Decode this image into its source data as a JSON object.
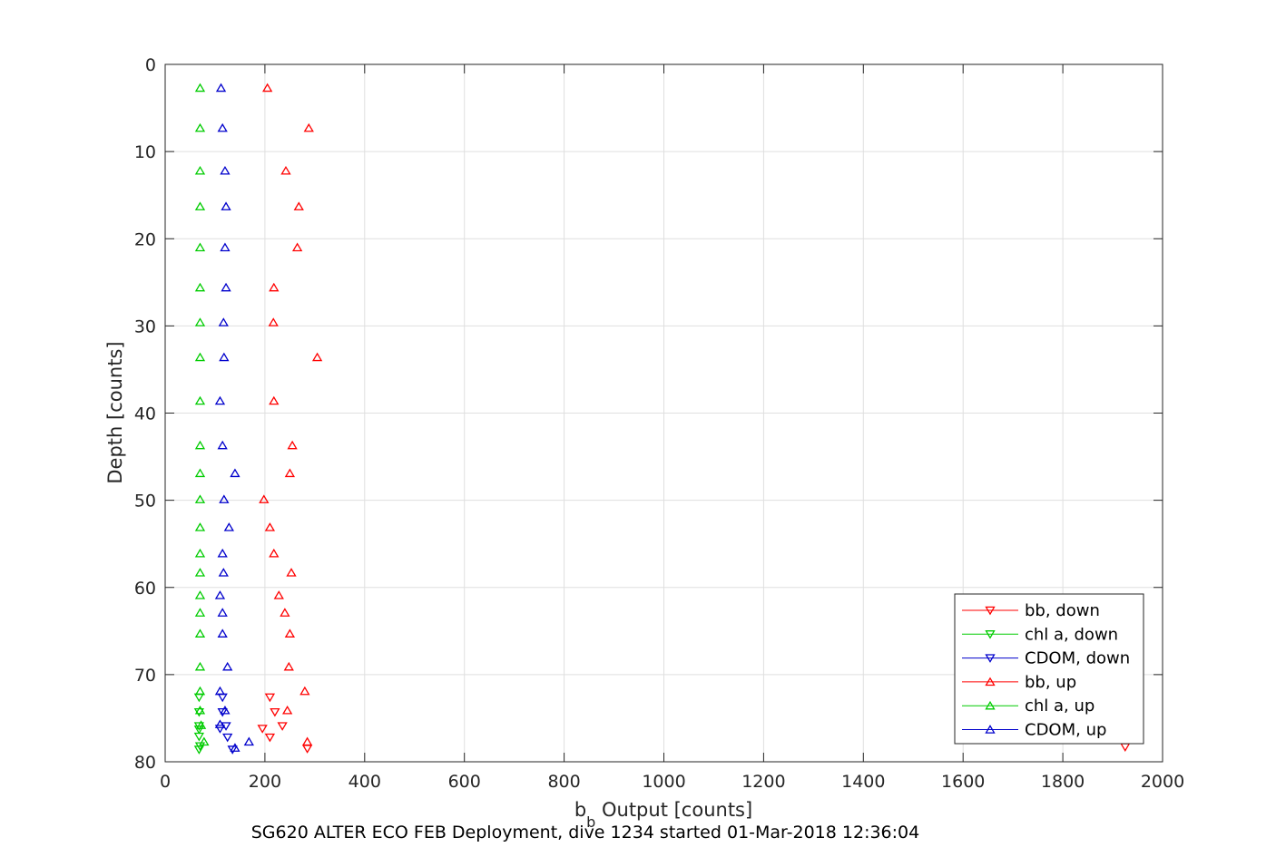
{
  "chart_data": {
    "type": "scatter",
    "xlabel_main": "b",
    "xlabel_sub": "b",
    "xlabel_rest": " Output [counts]",
    "ylabel": "Depth [counts]",
    "caption": "SG620 ALTER ECO FEB Deployment, dive 1234 started 01-Mar-2018 12:36:04",
    "xlim": [
      0,
      2000
    ],
    "ylim": [
      0,
      80
    ],
    "y_reversed": true,
    "grid": true,
    "legend_position": "bottom-right",
    "xticks": [
      0,
      200,
      400,
      600,
      800,
      1000,
      1200,
      1400,
      1600,
      1800,
      2000
    ],
    "yticks": [
      0,
      10,
      20,
      30,
      40,
      50,
      60,
      70,
      80
    ],
    "xtick_labels": [
      "0",
      "200",
      "400",
      "600",
      "800",
      "1000",
      "1200",
      "1400",
      "1600",
      "1800",
      "2000"
    ],
    "ytick_labels": [
      "0",
      "10",
      "20",
      "30",
      "40",
      "50",
      "60",
      "70",
      "80"
    ],
    "series": [
      {
        "name": "bb, down",
        "color": "#ff0000",
        "marker": "triangle-down",
        "points": [
          [
            210,
            72.6
          ],
          [
            220,
            74.3
          ],
          [
            235,
            75.9
          ],
          [
            195,
            76.2
          ],
          [
            210,
            77.2
          ],
          [
            285,
            78.5
          ],
          [
            1925,
            78.3
          ]
        ]
      },
      {
        "name": "chl a, down",
        "color": "#00cc00",
        "marker": "triangle-down",
        "points": [
          [
            68,
            72.6
          ],
          [
            68,
            74.3
          ],
          [
            68,
            75.9
          ],
          [
            68,
            76.3
          ],
          [
            68,
            77.1
          ],
          [
            70,
            78.2
          ],
          [
            68,
            78.6
          ]
        ]
      },
      {
        "name": "CDOM, down",
        "color": "#0000cc",
        "marker": "triangle-down",
        "points": [
          [
            115,
            72.6
          ],
          [
            115,
            74.3
          ],
          [
            122,
            75.9
          ],
          [
            110,
            76.2
          ],
          [
            125,
            77.2
          ],
          [
            135,
            78.6
          ]
        ]
      },
      {
        "name": "bb, up",
        "color": "#ff0000",
        "marker": "triangle-up",
        "points": [
          [
            205,
            2.7
          ],
          [
            288,
            7.3
          ],
          [
            242,
            12.2
          ],
          [
            268,
            16.3
          ],
          [
            265,
            21.0
          ],
          [
            218,
            25.6
          ],
          [
            217,
            29.6
          ],
          [
            305,
            33.6
          ],
          [
            218,
            38.6
          ],
          [
            255,
            43.7
          ],
          [
            250,
            46.9
          ],
          [
            198,
            49.9
          ],
          [
            210,
            53.1
          ],
          [
            218,
            56.1
          ],
          [
            253,
            58.3
          ],
          [
            228,
            60.9
          ],
          [
            240,
            62.9
          ],
          [
            250,
            65.3
          ],
          [
            248,
            69.1
          ],
          [
            280,
            71.9
          ],
          [
            245,
            74.1
          ],
          [
            285,
            77.7
          ]
        ]
      },
      {
        "name": "chl a, up",
        "color": "#00cc00",
        "marker": "triangle-up",
        "points": [
          [
            70,
            2.7
          ],
          [
            70,
            7.3
          ],
          [
            70,
            12.2
          ],
          [
            70,
            16.3
          ],
          [
            70,
            21.0
          ],
          [
            70,
            25.6
          ],
          [
            70,
            29.6
          ],
          [
            70,
            33.6
          ],
          [
            70,
            38.6
          ],
          [
            70,
            43.7
          ],
          [
            70,
            46.9
          ],
          [
            70,
            49.9
          ],
          [
            70,
            53.1
          ],
          [
            70,
            56.1
          ],
          [
            70,
            58.3
          ],
          [
            70,
            60.9
          ],
          [
            70,
            62.9
          ],
          [
            70,
            65.3
          ],
          [
            70,
            69.1
          ],
          [
            70,
            71.9
          ],
          [
            70,
            74.1
          ],
          [
            72,
            75.8
          ],
          [
            78,
            77.7
          ]
        ]
      },
      {
        "name": "CDOM, up",
        "color": "#0000cc",
        "marker": "triangle-up",
        "points": [
          [
            112,
            2.7
          ],
          [
            115,
            7.3
          ],
          [
            120,
            12.2
          ],
          [
            122,
            16.3
          ],
          [
            120,
            21.0
          ],
          [
            122,
            25.6
          ],
          [
            117,
            29.6
          ],
          [
            118,
            33.6
          ],
          [
            110,
            38.6
          ],
          [
            115,
            43.7
          ],
          [
            140,
            46.9
          ],
          [
            118,
            49.9
          ],
          [
            128,
            53.1
          ],
          [
            115,
            56.1
          ],
          [
            117,
            58.3
          ],
          [
            110,
            60.9
          ],
          [
            115,
            62.9
          ],
          [
            115,
            65.3
          ],
          [
            125,
            69.1
          ],
          [
            110,
            71.9
          ],
          [
            120,
            74.1
          ],
          [
            110,
            75.7
          ],
          [
            168,
            77.7
          ],
          [
            140,
            78.4
          ]
        ]
      }
    ]
  }
}
